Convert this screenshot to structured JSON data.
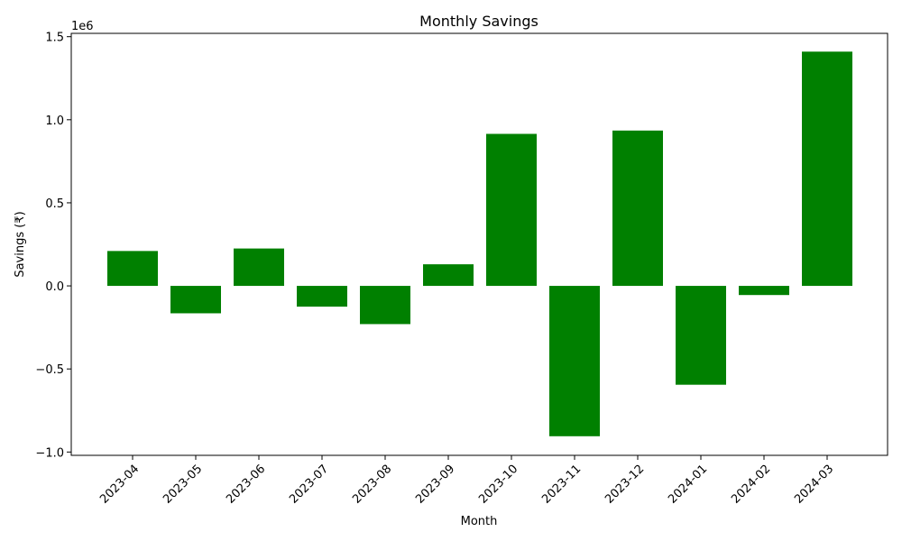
{
  "chart_data": {
    "type": "bar",
    "title": "Monthly Savings",
    "xlabel": "Month",
    "ylabel": "Savings (₹)",
    "y_offset_label": "1e6",
    "categories": [
      "2023-04",
      "2023-05",
      "2023-06",
      "2023-07",
      "2023-08",
      "2023-09",
      "2023-10",
      "2023-11",
      "2023-12",
      "2024-01",
      "2024-02",
      "2024-03"
    ],
    "values": [
      210000,
      -165000,
      225000,
      -125000,
      -230000,
      130000,
      915000,
      -905000,
      935000,
      -595000,
      -55000,
      1410000
    ],
    "ylim": [
      -1020000.0,
      1520000.0
    ],
    "yticks": [
      -1000000.0,
      -500000.0,
      0,
      500000.0,
      1000000.0,
      1500000.0
    ],
    "ytick_labels": [
      "−1.0",
      "−0.5",
      "0.0",
      "0.5",
      "1.0",
      "1.5"
    ],
    "bar_color": "#008000",
    "grid": false,
    "legend": "none"
  }
}
